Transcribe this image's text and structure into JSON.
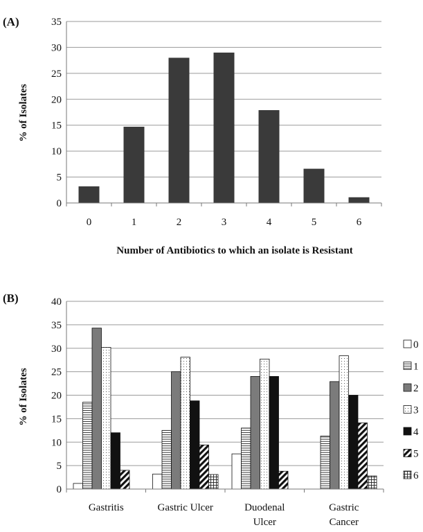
{
  "chart_data": [
    {
      "panel_label": "(A)",
      "type": "bar",
      "categories": [
        "0",
        "1",
        "2",
        "3",
        "4",
        "5",
        "6"
      ],
      "values": [
        3.2,
        14.7,
        28.0,
        29.0,
        17.9,
        6.6,
        1.1
      ],
      "xlabel": "Number of Antibiotics to which an isolate is Resistant",
      "ylabel": "% of Isolates",
      "ylim": [
        0,
        35
      ],
      "yticks": [
        "0",
        "5",
        "10",
        "15",
        "20",
        "25",
        "30",
        "35"
      ],
      "grid": true,
      "bar_color": "#3a3a3a"
    },
    {
      "panel_label": "(B)",
      "type": "bar",
      "categories": [
        "Gastritis",
        "Gastric Ulcer",
        "Duodenal Ulcer",
        "Gastric Cancer"
      ],
      "category_lines": [
        [
          "Gastritis"
        ],
        [
          "Gastric Ulcer"
        ],
        [
          "Duodenal",
          "Ulcer"
        ],
        [
          "Gastric",
          "Cancer"
        ]
      ],
      "ylabel": "% of Isolates",
      "ylim": [
        0,
        40
      ],
      "yticks": [
        "0",
        "5",
        "10",
        "15",
        "20",
        "25",
        "30",
        "35",
        "40"
      ],
      "grid": true,
      "legend_position": "right",
      "series": [
        {
          "name": "0",
          "pattern": "white",
          "values": [
            1.2,
            3.2,
            7.5,
            0
          ]
        },
        {
          "name": "1",
          "pattern": "hlines",
          "values": [
            18.5,
            12.5,
            13.0,
            11.3
          ]
        },
        {
          "name": "2",
          "pattern": "gray",
          "values": [
            34.3,
            25.0,
            24.0,
            22.9
          ]
        },
        {
          "name": "3",
          "pattern": "dots",
          "values": [
            30.2,
            28.1,
            27.7,
            28.4
          ]
        },
        {
          "name": "4",
          "pattern": "black",
          "values": [
            12.0,
            18.8,
            24.0,
            20.0
          ]
        },
        {
          "name": "5",
          "pattern": "diagonal",
          "values": [
            4.0,
            9.4,
            3.8,
            14.1
          ]
        },
        {
          "name": "6",
          "pattern": "grid",
          "values": [
            0,
            3.1,
            0,
            2.8
          ]
        }
      ]
    }
  ]
}
